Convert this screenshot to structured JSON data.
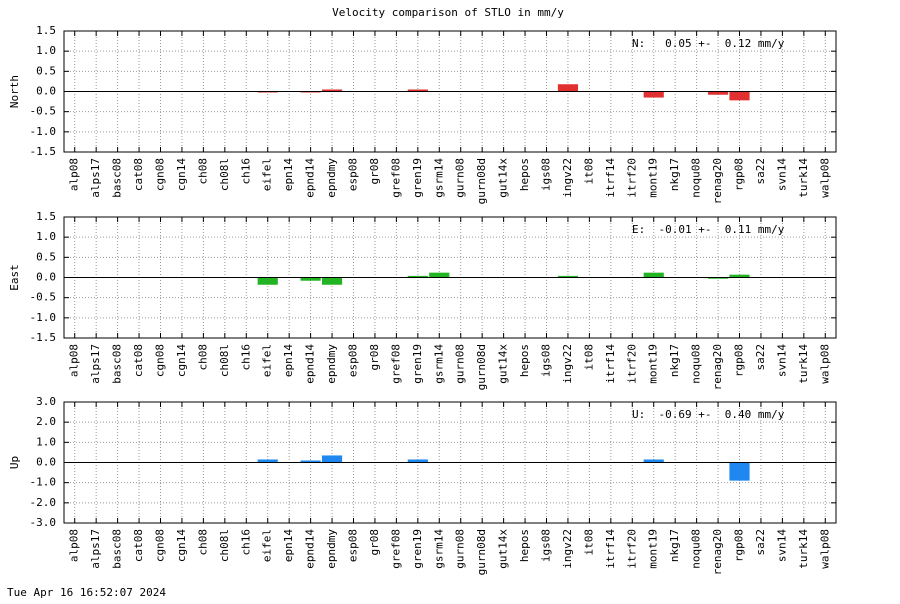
{
  "title": "Velocity comparison of STLO in mm/y",
  "timestamp": "Tue Apr 16 16:52:07 2024",
  "chart_data": [
    {
      "type": "bar",
      "ylabel": "North",
      "annotation": "N:   0.05 +-  0.12 mm/y",
      "color": "#e03030",
      "grid": true,
      "categories": [
        "alp08",
        "alps17",
        "basc08",
        "cat08",
        "cgn08",
        "cgn14",
        "ch08",
        "ch08l",
        "ch16",
        "eifel",
        "epn14",
        "epnd14",
        "epndmy",
        "esp08",
        "gr08",
        "gref08",
        "gren19",
        "gsrm14",
        "gurn08",
        "gurn08d",
        "gut14x",
        "hepos",
        "igs08",
        "ingv22",
        "it08",
        "itrf14",
        "itrf20",
        "mont19",
        "nkg17",
        "noqu08",
        "renag20",
        "rgp08",
        "sa22",
        "svn14",
        "turk14",
        "walp08"
      ],
      "values": [
        null,
        null,
        null,
        null,
        null,
        null,
        null,
        null,
        null,
        -0.02,
        null,
        -0.02,
        0.05,
        null,
        null,
        null,
        0.05,
        null,
        null,
        null,
        null,
        null,
        null,
        0.18,
        null,
        null,
        null,
        -0.15,
        null,
        null,
        -0.08,
        -0.22,
        null,
        null,
        null,
        null
      ],
      "ylim": [
        -1.5,
        1.5
      ],
      "yticks": [
        -1.5,
        {
          "value": -1,
          "label": "-1.0"
        },
        -0.5,
        {
          "value": 0,
          "label": "0.0"
        },
        0.5,
        {
          "value": 1,
          "label": "1.0"
        },
        1.5
      ]
    },
    {
      "type": "bar",
      "ylabel": "East",
      "annotation": "E:  -0.01 +-  0.11 mm/y",
      "color": "#22b422",
      "grid": true,
      "categories": [
        "alp08",
        "alps17",
        "basc08",
        "cat08",
        "cgn08",
        "cgn14",
        "ch08",
        "ch08l",
        "ch16",
        "eifel",
        "epn14",
        "epnd14",
        "epndmy",
        "esp08",
        "gr08",
        "gref08",
        "gren19",
        "gsrm14",
        "gurn08",
        "gurn08d",
        "gut14x",
        "hepos",
        "igs08",
        "ingv22",
        "it08",
        "itrf14",
        "itrf20",
        "mont19",
        "nkg17",
        "noqu08",
        "renag20",
        "rgp08",
        "sa22",
        "svn14",
        "turk14",
        "walp08"
      ],
      "values": [
        null,
        null,
        null,
        null,
        null,
        null,
        null,
        null,
        null,
        -0.18,
        null,
        -0.08,
        -0.18,
        null,
        null,
        null,
        0.04,
        0.12,
        null,
        null,
        null,
        null,
        null,
        0.04,
        null,
        null,
        null,
        0.12,
        null,
        null,
        -0.03,
        0.07,
        null,
        null,
        null,
        null
      ],
      "ylim": [
        -1.5,
        1.5
      ],
      "yticks": [
        -1.5,
        {
          "value": -1,
          "label": "-1.0"
        },
        -0.5,
        {
          "value": 0,
          "label": "0.0"
        },
        0.5,
        {
          "value": 1,
          "label": "1.0"
        },
        1.5
      ]
    },
    {
      "type": "bar",
      "ylabel": "Up",
      "annotation": "U:  -0.69 +-  0.40 mm/y",
      "color": "#1e88f0",
      "grid": true,
      "categories": [
        "alp08",
        "alps17",
        "basc08",
        "cat08",
        "cgn08",
        "cgn14",
        "ch08",
        "ch08l",
        "ch16",
        "eifel",
        "epn14",
        "epnd14",
        "epndmy",
        "esp08",
        "gr08",
        "gref08",
        "gren19",
        "gsrm14",
        "gurn08",
        "gurn08d",
        "gut14x",
        "hepos",
        "igs08",
        "ingv22",
        "it08",
        "itrf14",
        "itrf20",
        "mont19",
        "nkg17",
        "noqu08",
        "renag20",
        "rgp08",
        "sa22",
        "svn14",
        "turk14",
        "walp08"
      ],
      "values": [
        null,
        null,
        null,
        null,
        null,
        null,
        null,
        null,
        null,
        0.15,
        null,
        0.1,
        0.35,
        null,
        null,
        null,
        0.15,
        null,
        null,
        null,
        null,
        null,
        null,
        null,
        null,
        null,
        null,
        0.15,
        null,
        null,
        null,
        -0.9,
        null,
        null,
        null,
        null
      ],
      "ylim": [
        -3,
        3
      ],
      "yticks": [
        {
          "value": -3,
          "label": "-3.0"
        },
        {
          "value": -2,
          "label": "-2.0"
        },
        {
          "value": -1,
          "label": "-1.0"
        },
        {
          "value": 0,
          "label": "0.0"
        },
        {
          "value": 1,
          "label": "1.0"
        },
        {
          "value": 2,
          "label": "2.0"
        },
        {
          "value": 3,
          "label": "3.0"
        }
      ]
    }
  ]
}
